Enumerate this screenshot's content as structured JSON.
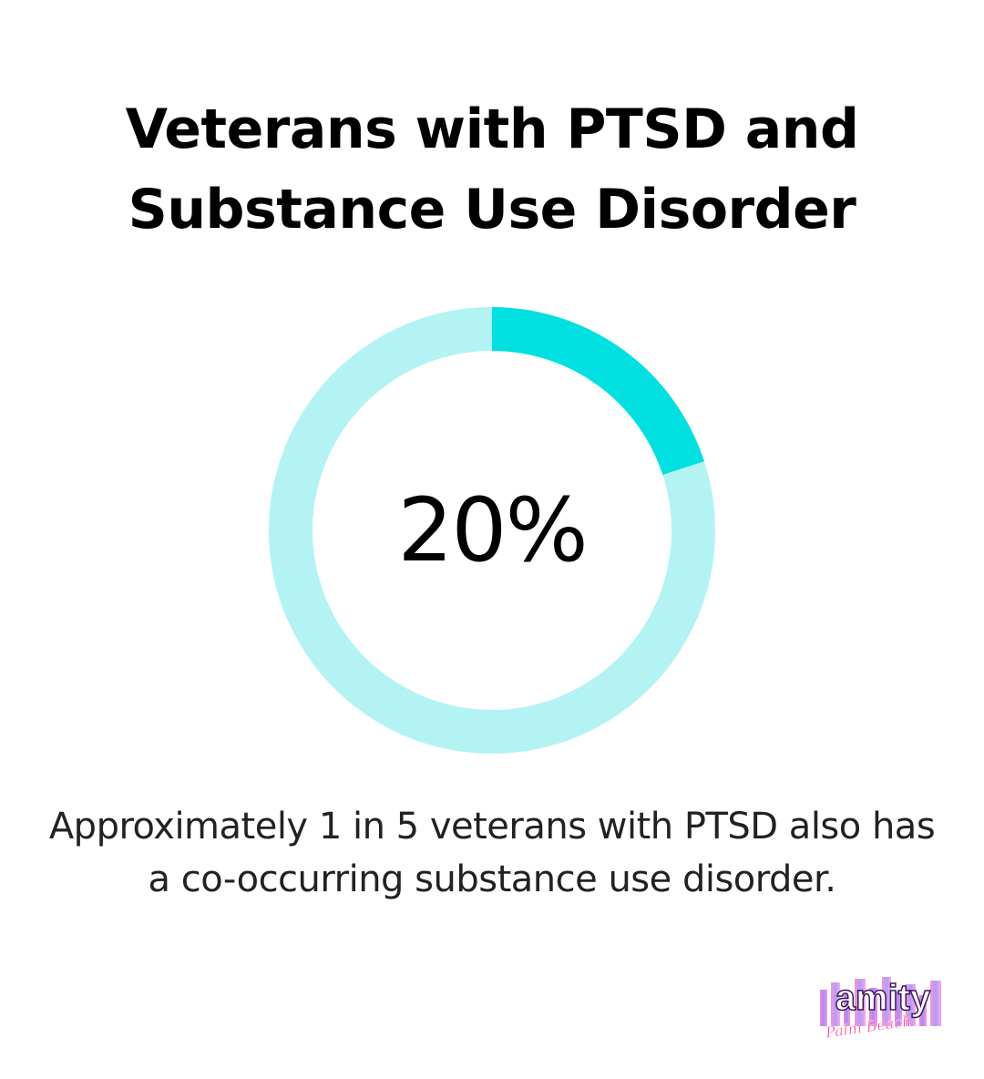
{
  "title": "Veterans with PTSD and Substance Use Disorder",
  "chart_data": {
    "type": "pie",
    "variant": "donut",
    "value_percent": 20,
    "center_label": "20%",
    "slices": [
      {
        "value": 20,
        "color": "#00E0E0"
      },
      {
        "value": 80,
        "color": "#B3F3F3"
      }
    ]
  },
  "caption": "Approximately 1 in 5 veterans with PTSD also has a co-occurring substance use disorder.",
  "logo": {
    "name": "amity-palm-beach-logo",
    "text": "amity",
    "script_text": "Palm Beach"
  }
}
